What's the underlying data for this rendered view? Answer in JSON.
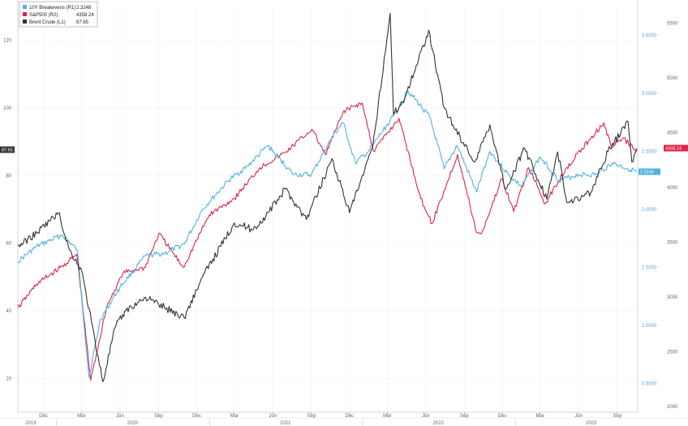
{
  "chart_data": {
    "type": "line",
    "grid": true,
    "legend_position": "top-left",
    "x_tick_labels": [
      "Dec",
      "Mar",
      "Jun",
      "Sep",
      "Dec",
      "Mar",
      "Jun",
      "Sep",
      "Dec",
      "Mar",
      "Jun",
      "Sep",
      "Dec",
      "Mar",
      "Jun",
      "Sep"
    ],
    "x_year_labels": [
      "2019",
      "2020",
      "2021",
      "2022",
      "2023"
    ],
    "x_range": [
      "2019-10-01",
      "2023-10-20"
    ],
    "left_axis": {
      "ticks": [
        20,
        40,
        60,
        80,
        100,
        120
      ],
      "range": [
        10,
        130
      ]
    },
    "r1_axis": {
      "ticks": [
        "0.5000",
        "1.0000",
        "1.5000",
        "2.0000",
        "2.5000",
        "3.0000",
        "3.5000"
      ],
      "range": [
        0.25,
        3.75
      ]
    },
    "r2_axis": {
      "ticks": [
        2000,
        2500,
        3000,
        3500,
        4000,
        4500,
        5000,
        5500
      ],
      "range": [
        1950,
        5650
      ]
    },
    "series": [
      {
        "name": "10Y Breakevens (R1)",
        "last_value": "2.3248",
        "axis": "R1",
        "color": "#4fb3e0",
        "points": [
          [
            "2019-10-01",
            1.55
          ],
          [
            "2019-11-15",
            1.68
          ],
          [
            "2020-01-15",
            1.78
          ],
          [
            "2020-02-20",
            1.65
          ],
          [
            "2020-03-19",
            0.55
          ],
          [
            "2020-04-15",
            1.05
          ],
          [
            "2020-06-01",
            1.33
          ],
          [
            "2020-08-01",
            1.6
          ],
          [
            "2020-09-15",
            1.62
          ],
          [
            "2020-11-01",
            1.7
          ],
          [
            "2020-12-15",
            2.0
          ],
          [
            "2021-02-15",
            2.25
          ],
          [
            "2021-04-01",
            2.37
          ],
          [
            "2021-05-20",
            2.55
          ],
          [
            "2021-07-20",
            2.3
          ],
          [
            "2021-09-01",
            2.3
          ],
          [
            "2021-10-20",
            2.62
          ],
          [
            "2021-11-15",
            2.75
          ],
          [
            "2021-12-15",
            2.4
          ],
          [
            "2022-01-15",
            2.5
          ],
          [
            "2022-03-15",
            2.8
          ],
          [
            "2022-04-20",
            3.02
          ],
          [
            "2022-06-10",
            2.8
          ],
          [
            "2022-07-15",
            2.35
          ],
          [
            "2022-08-15",
            2.55
          ],
          [
            "2022-09-30",
            2.15
          ],
          [
            "2022-11-01",
            2.5
          ],
          [
            "2022-12-15",
            2.3
          ],
          [
            "2023-01-15",
            2.2
          ],
          [
            "2023-03-01",
            2.45
          ],
          [
            "2023-04-15",
            2.25
          ],
          [
            "2023-06-01",
            2.3
          ],
          [
            "2023-07-15",
            2.3
          ],
          [
            "2023-08-20",
            2.4
          ],
          [
            "2023-10-18",
            2.3248
          ]
        ]
      },
      {
        "name": "S&P500 (R2)",
        "last_value": "4358.24",
        "axis": "R2",
        "color": "#e0234a",
        "points": [
          [
            "2019-10-01",
            2900
          ],
          [
            "2019-11-15",
            3120
          ],
          [
            "2020-01-15",
            3280
          ],
          [
            "2020-02-19",
            3390
          ],
          [
            "2020-03-23",
            2240
          ],
          [
            "2020-04-30",
            2910
          ],
          [
            "2020-06-08",
            3220
          ],
          [
            "2020-07-31",
            3270
          ],
          [
            "2020-09-02",
            3580
          ],
          [
            "2020-10-30",
            3270
          ],
          [
            "2020-12-31",
            3750
          ],
          [
            "2021-03-01",
            3900
          ],
          [
            "2021-05-01",
            4180
          ],
          [
            "2021-07-01",
            4320
          ],
          [
            "2021-09-02",
            4530
          ],
          [
            "2021-10-04",
            4300
          ],
          [
            "2021-11-18",
            4700
          ],
          [
            "2021-12-31",
            4770
          ],
          [
            "2022-01-27",
            4330
          ],
          [
            "2022-03-29",
            4630
          ],
          [
            "2022-05-20",
            3900
          ],
          [
            "2022-06-16",
            3670
          ],
          [
            "2022-08-16",
            4300
          ],
          [
            "2022-09-30",
            3590
          ],
          [
            "2022-10-12",
            3580
          ],
          [
            "2022-11-30",
            4080
          ],
          [
            "2022-12-28",
            3780
          ],
          [
            "2023-02-02",
            4180
          ],
          [
            "2023-03-13",
            3850
          ],
          [
            "2023-05-01",
            4170
          ],
          [
            "2023-06-30",
            4450
          ],
          [
            "2023-07-31",
            4590
          ],
          [
            "2023-08-18",
            4370
          ],
          [
            "2023-09-15",
            4450
          ],
          [
            "2023-10-12",
            4350
          ],
          [
            "2023-10-18",
            4358.24
          ]
        ]
      },
      {
        "name": "Brent Crude (L1)",
        "last_value": "87.65",
        "axis": "L1",
        "color": "#333333",
        "points": [
          [
            "2019-10-01",
            59
          ],
          [
            "2019-11-15",
            63
          ],
          [
            "2020-01-06",
            69
          ],
          [
            "2020-02-01",
            58
          ],
          [
            "2020-03-01",
            52
          ],
          [
            "2020-04-21",
            19
          ],
          [
            "2020-05-20",
            35
          ],
          [
            "2020-06-15",
            40
          ],
          [
            "2020-08-01",
            44
          ],
          [
            "2020-09-15",
            41
          ],
          [
            "2020-11-01",
            38
          ],
          [
            "2020-12-15",
            50
          ],
          [
            "2021-03-01",
            66
          ],
          [
            "2021-04-15",
            64
          ],
          [
            "2021-05-15",
            68
          ],
          [
            "2021-07-01",
            76
          ],
          [
            "2021-08-20",
            67
          ],
          [
            "2021-10-20",
            85
          ],
          [
            "2021-12-01",
            69
          ],
          [
            "2022-01-25",
            88
          ],
          [
            "2022-03-08",
            128
          ],
          [
            "2022-03-16",
            98
          ],
          [
            "2022-04-12",
            103
          ],
          [
            "2022-06-08",
            123
          ],
          [
            "2022-07-15",
            100
          ],
          [
            "2022-08-05",
            95
          ],
          [
            "2022-09-26",
            84
          ],
          [
            "2022-11-01",
            95
          ],
          [
            "2022-12-09",
            76
          ],
          [
            "2023-01-23",
            88
          ],
          [
            "2023-03-17",
            73
          ],
          [
            "2023-04-12",
            87
          ],
          [
            "2023-05-04",
            72
          ],
          [
            "2023-06-30",
            75
          ],
          [
            "2023-08-10",
            87
          ],
          [
            "2023-09-27",
            96
          ],
          [
            "2023-10-06",
            84
          ],
          [
            "2023-10-18",
            87.65
          ]
        ]
      }
    ]
  }
}
